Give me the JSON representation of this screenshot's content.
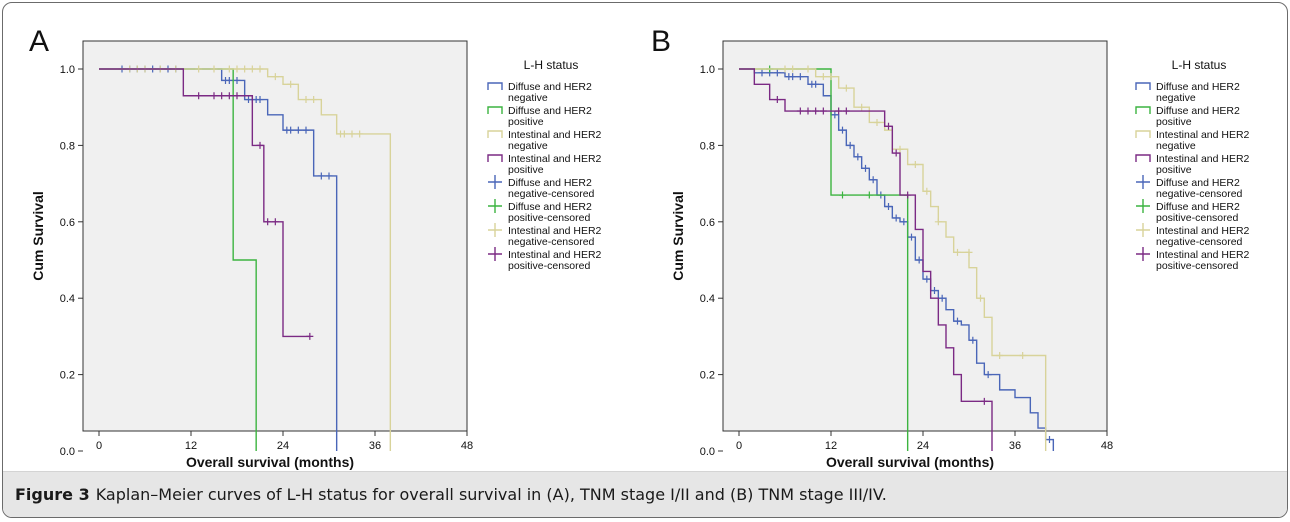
{
  "caption": {
    "label": "Figure 3",
    "text": "Kaplan–Meier curves of L-H status for overall survival in (A), TNM stage I/II and (B) TNM stage III/IV."
  },
  "colors": {
    "diffuse_her2_negative": "#4a66b8",
    "diffuse_her2_positive": "#3cb440",
    "intestinal_her2_negative": "#d8d39a",
    "intestinal_her2_positive": "#7b2a84",
    "plot_background": "#f0f0f0"
  },
  "chart_data": [
    {
      "type": "line",
      "panel_label": "A",
      "title": "",
      "xlabel": "Overall survival (months)",
      "ylabel": "Cum Survival",
      "xlim": [
        0,
        48
      ],
      "ylim": [
        0,
        1
      ],
      "xticks": [
        "0",
        "12",
        "24",
        "36",
        "48"
      ],
      "yticks": [
        "0.0",
        "0.2",
        "0.4",
        "0.6",
        "0.8",
        "1.0"
      ],
      "grid": false,
      "legend_position": "right",
      "legend_title": "L-H status",
      "legend_entries": [
        "Diffuse and HER2 negative",
        "Diffuse and HER2 positive",
        "Intestinal and HER2 negative",
        "Intestinal and HER2 positive",
        "Diffuse and HER2 negative-censored",
        "Diffuse and HER2 positive-censored",
        "Intestinal and HER2 negative-censored",
        "Intestinal and HER2 positive-censored"
      ],
      "series": [
        {
          "name": "Diffuse and HER2 negative",
          "color": "#4a66b8",
          "steps": [
            [
              0,
              1.0
            ],
            [
              16,
              0.97
            ],
            [
              19,
              0.92
            ],
            [
              22,
              0.88
            ],
            [
              24,
              0.84
            ],
            [
              28,
              0.72
            ],
            [
              31,
              0.72
            ],
            [
              31,
              0.0
            ]
          ],
          "censored": [
            [
              3,
              1.0
            ],
            [
              4,
              1.0
            ],
            [
              5,
              1.0
            ],
            [
              6,
              1.0
            ],
            [
              7,
              1.0
            ],
            [
              8,
              1.0
            ],
            [
              9,
              1.0
            ],
            [
              10,
              1.0
            ],
            [
              16.5,
              0.97
            ],
            [
              17,
              0.97
            ],
            [
              18,
              0.97
            ],
            [
              19.5,
              0.92
            ],
            [
              20,
              0.92
            ],
            [
              20.5,
              0.92
            ],
            [
              21,
              0.92
            ],
            [
              24.5,
              0.84
            ],
            [
              25,
              0.84
            ],
            [
              26,
              0.84
            ],
            [
              27,
              0.84
            ],
            [
              29,
              0.72
            ],
            [
              30,
              0.72
            ]
          ]
        },
        {
          "name": "Diffuse and HER2 positive",
          "color": "#3cb440",
          "steps": [
            [
              0,
              1.0
            ],
            [
              17.5,
              0.5
            ],
            [
              20.5,
              0.5
            ],
            [
              20.5,
              0.0
            ]
          ],
          "censored": []
        },
        {
          "name": "Intestinal and HER2 negative",
          "color": "#d8d39a",
          "steps": [
            [
              0,
              1.0
            ],
            [
              22,
              0.98
            ],
            [
              24,
              0.96
            ],
            [
              26,
              0.92
            ],
            [
              29,
              0.88
            ],
            [
              31,
              0.83
            ],
            [
              38,
              0.83
            ],
            [
              38,
              0.0
            ]
          ],
          "censored": [
            [
              4,
              1.0
            ],
            [
              5,
              1.0
            ],
            [
              6,
              1.0
            ],
            [
              8,
              1.0
            ],
            [
              10,
              1.0
            ],
            [
              13,
              1.0
            ],
            [
              15,
              1.0
            ],
            [
              17,
              1.0
            ],
            [
              18,
              1.0
            ],
            [
              19,
              1.0
            ],
            [
              20,
              1.0
            ],
            [
              21,
              1.0
            ],
            [
              23,
              0.98
            ],
            [
              25,
              0.96
            ],
            [
              27,
              0.92
            ],
            [
              28,
              0.92
            ],
            [
              31.5,
              0.83
            ],
            [
              32,
              0.83
            ],
            [
              33,
              0.83
            ],
            [
              34,
              0.83
            ]
          ]
        },
        {
          "name": "Intestinal and HER2 positive",
          "color": "#7b2a84",
          "steps": [
            [
              0,
              1.0
            ],
            [
              11,
              0.93
            ],
            [
              20,
              0.8
            ],
            [
              21.5,
              0.6
            ],
            [
              24,
              0.3
            ],
            [
              27.5,
              0.3
            ]
          ],
          "censored": [
            [
              13,
              0.93
            ],
            [
              15,
              0.93
            ],
            [
              16,
              0.93
            ],
            [
              17,
              0.93
            ],
            [
              18,
              0.93
            ],
            [
              21,
              0.8
            ],
            [
              22,
              0.6
            ],
            [
              23,
              0.6
            ],
            [
              27.5,
              0.3
            ]
          ]
        }
      ]
    },
    {
      "type": "line",
      "panel_label": "B",
      "title": "",
      "xlabel": "Overall survival (months)",
      "ylabel": "Cum Survival",
      "xlim": [
        0,
        48
      ],
      "ylim": [
        0,
        1
      ],
      "xticks": [
        "0",
        "12",
        "24",
        "36",
        "48"
      ],
      "yticks": [
        "0.0",
        "0.2",
        "0.4",
        "0.6",
        "0.8",
        "1.0"
      ],
      "grid": false,
      "legend_position": "right",
      "legend_title": "L-H status",
      "legend_entries": [
        "Diffuse and HER2 negative",
        "Diffuse and HER2 positive",
        "Intestinal and HER2 negative",
        "Intestinal and HER2 positive",
        "Diffuse and HER2 negative-censored",
        "Diffuse and HER2 positive-censored",
        "Intestinal and HER2 negative-censored",
        "Intestinal and HER2 positive-censored"
      ],
      "series": [
        {
          "name": "Diffuse and HER2 negative",
          "color": "#4a66b8",
          "steps": [
            [
              0,
              1.0
            ],
            [
              2,
              0.99
            ],
            [
              6,
              0.98
            ],
            [
              9,
              0.96
            ],
            [
              11,
              0.93
            ],
            [
              12,
              0.88
            ],
            [
              13,
              0.84
            ],
            [
              14,
              0.8
            ],
            [
              15,
              0.77
            ],
            [
              16,
              0.74
            ],
            [
              17,
              0.71
            ],
            [
              18,
              0.67
            ],
            [
              19,
              0.64
            ],
            [
              20,
              0.61
            ],
            [
              21,
              0.6
            ],
            [
              22,
              0.56
            ],
            [
              23,
              0.5
            ],
            [
              24,
              0.45
            ],
            [
              25,
              0.42
            ],
            [
              26,
              0.4
            ],
            [
              27,
              0.37
            ],
            [
              28,
              0.34
            ],
            [
              29,
              0.33
            ],
            [
              30,
              0.29
            ],
            [
              31,
              0.23
            ],
            [
              32,
              0.2
            ],
            [
              34,
              0.16
            ],
            [
              36,
              0.14
            ],
            [
              38,
              0.1
            ],
            [
              39,
              0.06
            ],
            [
              40,
              0.03
            ],
            [
              41,
              0.0
            ]
          ],
          "censored": [
            [
              3,
              0.99
            ],
            [
              4,
              0.99
            ],
            [
              5,
              0.99
            ],
            [
              6.5,
              0.98
            ],
            [
              7,
              0.98
            ],
            [
              8,
              0.98
            ],
            [
              9.5,
              0.96
            ],
            [
              10,
              0.96
            ],
            [
              12.5,
              0.88
            ],
            [
              13.5,
              0.84
            ],
            [
              14.5,
              0.8
            ],
            [
              15.5,
              0.77
            ],
            [
              16.5,
              0.74
            ],
            [
              17.5,
              0.71
            ],
            [
              18.5,
              0.67
            ],
            [
              19.5,
              0.64
            ],
            [
              20.5,
              0.61
            ],
            [
              21.5,
              0.6
            ],
            [
              22.5,
              0.56
            ],
            [
              23.5,
              0.5
            ],
            [
              24.5,
              0.45
            ],
            [
              25.5,
              0.42
            ],
            [
              26.5,
              0.4
            ],
            [
              28.5,
              0.34
            ],
            [
              30.5,
              0.29
            ],
            [
              32.5,
              0.2
            ],
            [
              40.5,
              0.03
            ]
          ]
        },
        {
          "name": "Diffuse and HER2 positive",
          "color": "#3cb440",
          "steps": [
            [
              0,
              1.0
            ],
            [
              12,
              0.67
            ],
            [
              22,
              0.67
            ],
            [
              22,
              0.0
            ]
          ],
          "censored": [
            [
              4,
              1.0
            ],
            [
              13.5,
              0.67
            ],
            [
              17,
              0.67
            ]
          ]
        },
        {
          "name": "Intestinal and HER2 negative",
          "color": "#d8d39a",
          "steps": [
            [
              0,
              1.0
            ],
            [
              10,
              0.98
            ],
            [
              13,
              0.95
            ],
            [
              15,
              0.9
            ],
            [
              17,
              0.86
            ],
            [
              19,
              0.84
            ],
            [
              20,
              0.79
            ],
            [
              22,
              0.75
            ],
            [
              24,
              0.68
            ],
            [
              25,
              0.64
            ],
            [
              26,
              0.6
            ],
            [
              27,
              0.56
            ],
            [
              28,
              0.52
            ],
            [
              30,
              0.48
            ],
            [
              31,
              0.4
            ],
            [
              32,
              0.35
            ],
            [
              33,
              0.25
            ],
            [
              37,
              0.25
            ],
            [
              40,
              0.25
            ],
            [
              40,
              0.0
            ]
          ],
          "censored": [
            [
              6,
              1.0
            ],
            [
              7,
              1.0
            ],
            [
              9,
              1.0
            ],
            [
              11,
              0.98
            ],
            [
              12,
              0.98
            ],
            [
              14,
              0.95
            ],
            [
              16,
              0.9
            ],
            [
              18,
              0.86
            ],
            [
              21,
              0.79
            ],
            [
              23,
              0.75
            ],
            [
              24.5,
              0.68
            ],
            [
              26,
              0.6
            ],
            [
              28.5,
              0.52
            ],
            [
              30,
              0.52
            ],
            [
              31.5,
              0.4
            ],
            [
              34,
              0.25
            ],
            [
              37,
              0.25
            ]
          ]
        },
        {
          "name": "Intestinal and HER2 positive",
          "color": "#7b2a84",
          "steps": [
            [
              0,
              1.0
            ],
            [
              2,
              0.96
            ],
            [
              4,
              0.92
            ],
            [
              6,
              0.89
            ],
            [
              19,
              0.85
            ],
            [
              20,
              0.78
            ],
            [
              21,
              0.67
            ],
            [
              23,
              0.58
            ],
            [
              24,
              0.47
            ],
            [
              25,
              0.4
            ],
            [
              26,
              0.33
            ],
            [
              27,
              0.27
            ],
            [
              28,
              0.2
            ],
            [
              29,
              0.13
            ],
            [
              31,
              0.13
            ],
            [
              33,
              0.0
            ]
          ],
          "censored": [
            [
              5,
              0.92
            ],
            [
              8,
              0.89
            ],
            [
              9,
              0.89
            ],
            [
              10,
              0.89
            ],
            [
              11,
              0.89
            ],
            [
              13,
              0.89
            ],
            [
              14,
              0.89
            ],
            [
              19.5,
              0.85
            ],
            [
              20.5,
              0.78
            ],
            [
              22,
              0.67
            ],
            [
              32,
              0.13
            ]
          ]
        }
      ]
    }
  ]
}
